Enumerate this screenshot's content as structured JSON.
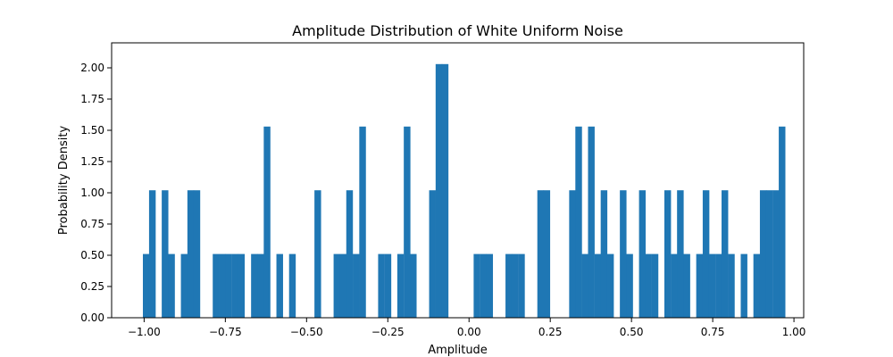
{
  "chart_data": {
    "type": "bar",
    "title": "Amplitude Distribution of White Uniform Noise",
    "xlabel": "Amplitude",
    "ylabel": "Probability Density",
    "xlim": [
      -1.1,
      1.03
    ],
    "ylim": [
      0,
      2.2
    ],
    "bin_width": 0.0196,
    "bar_color": "#1f77b4",
    "grid": false,
    "xticks": [
      -1.0,
      -0.75,
      -0.5,
      -0.25,
      0.0,
      0.25,
      0.5,
      0.75,
      1.0
    ],
    "xtick_labels": [
      "−1.00",
      "−0.75",
      "−0.50",
      "−0.25",
      "0.00",
      "0.25",
      "0.50",
      "0.75",
      "1.00"
    ],
    "yticks": [
      0,
      0.25,
      0.5,
      0.75,
      1.0,
      1.25,
      1.5,
      1.75,
      2.0
    ],
    "ytick_labels": [
      "0.00",
      "0.25",
      "0.50",
      "0.75",
      "1.00",
      "1.25",
      "1.50",
      "1.75",
      "2.00"
    ],
    "bins": [
      {
        "x": -0.994,
        "density": 0.51
      },
      {
        "x": -0.975,
        "density": 1.02
      },
      {
        "x": -0.936,
        "density": 1.02
      },
      {
        "x": -0.916,
        "density": 0.51
      },
      {
        "x": -0.877,
        "density": 0.51
      },
      {
        "x": -0.857,
        "density": 1.02
      },
      {
        "x": -0.838,
        "density": 1.02
      },
      {
        "x": -0.779,
        "density": 0.51
      },
      {
        "x": -0.759,
        "density": 0.51
      },
      {
        "x": -0.74,
        "density": 0.51
      },
      {
        "x": -0.72,
        "density": 0.51
      },
      {
        "x": -0.701,
        "density": 0.51
      },
      {
        "x": -0.661,
        "density": 0.51
      },
      {
        "x": -0.642,
        "density": 0.51
      },
      {
        "x": -0.622,
        "density": 1.53
      },
      {
        "x": -0.583,
        "density": 0.51
      },
      {
        "x": -0.544,
        "density": 0.51
      },
      {
        "x": -0.466,
        "density": 1.02
      },
      {
        "x": -0.407,
        "density": 0.51
      },
      {
        "x": -0.387,
        "density": 0.51
      },
      {
        "x": -0.368,
        "density": 1.02
      },
      {
        "x": -0.348,
        "density": 0.51
      },
      {
        "x": -0.328,
        "density": 1.53
      },
      {
        "x": -0.27,
        "density": 0.51
      },
      {
        "x": -0.25,
        "density": 0.51
      },
      {
        "x": -0.211,
        "density": 0.51
      },
      {
        "x": -0.191,
        "density": 1.53
      },
      {
        "x": -0.172,
        "density": 0.51
      },
      {
        "x": -0.113,
        "density": 1.02
      },
      {
        "x": -0.093,
        "density": 2.03
      },
      {
        "x": -0.074,
        "density": 2.03
      },
      {
        "x": 0.024,
        "density": 0.51
      },
      {
        "x": 0.044,
        "density": 0.51
      },
      {
        "x": 0.063,
        "density": 0.51
      },
      {
        "x": 0.122,
        "density": 0.51
      },
      {
        "x": 0.141,
        "density": 0.51
      },
      {
        "x": 0.161,
        "density": 0.51
      },
      {
        "x": 0.22,
        "density": 1.02
      },
      {
        "x": 0.239,
        "density": 1.02
      },
      {
        "x": 0.318,
        "density": 1.02
      },
      {
        "x": 0.337,
        "density": 1.53
      },
      {
        "x": 0.357,
        "density": 0.51
      },
      {
        "x": 0.376,
        "density": 1.53
      },
      {
        "x": 0.396,
        "density": 0.51
      },
      {
        "x": 0.415,
        "density": 1.02
      },
      {
        "x": 0.435,
        "density": 0.51
      },
      {
        "x": 0.474,
        "density": 1.02
      },
      {
        "x": 0.494,
        "density": 0.51
      },
      {
        "x": 0.533,
        "density": 1.02
      },
      {
        "x": 0.552,
        "density": 0.51
      },
      {
        "x": 0.572,
        "density": 0.51
      },
      {
        "x": 0.611,
        "density": 1.02
      },
      {
        "x": 0.631,
        "density": 0.51
      },
      {
        "x": 0.65,
        "density": 1.02
      },
      {
        "x": 0.67,
        "density": 0.51
      },
      {
        "x": 0.709,
        "density": 0.51
      },
      {
        "x": 0.729,
        "density": 1.02
      },
      {
        "x": 0.748,
        "density": 0.51
      },
      {
        "x": 0.768,
        "density": 0.51
      },
      {
        "x": 0.787,
        "density": 1.02
      },
      {
        "x": 0.807,
        "density": 0.51
      },
      {
        "x": 0.846,
        "density": 0.51
      },
      {
        "x": 0.885,
        "density": 0.51
      },
      {
        "x": 0.905,
        "density": 1.02
      },
      {
        "x": 0.924,
        "density": 1.02
      },
      {
        "x": 0.944,
        "density": 1.02
      },
      {
        "x": 0.963,
        "density": 1.53
      }
    ]
  }
}
